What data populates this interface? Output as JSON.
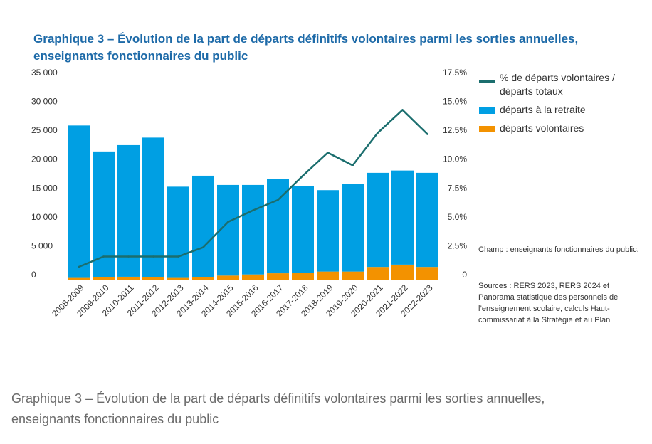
{
  "title_lines": [
    "Graphique 3 – Évolution de la part de départs définitifs  volontaires parmi les sorties annuelles,",
    "enseignants fonctionnaires du public"
  ],
  "caption_lines": [
    "Graphique 3 – Évolution de la part de départs définitifs volontaires parmi les sorties annuelles,",
    "enseignants fonctionnaires du public"
  ],
  "legend": {
    "line_label": "% de départs volontaires / départs totaux",
    "retraite_label": "départs à la retraite",
    "volontaires_label": "départs volontaires"
  },
  "notes": {
    "champ": "Champ : enseignants fonctionnaires du public.",
    "sources": "Sources : RERS 2023, RERS 2024 et Panorama statistique des personnels de l’enseignement scolaire, calculs Haut-commissariat à la Stratégie et au Plan"
  },
  "colors": {
    "title": "#1d6aa8",
    "retraite": "#009fe3",
    "volontaires": "#f39200",
    "line": "#1b6e6e",
    "axis": "#333333"
  },
  "chart_data": {
    "type": "bar",
    "stacked": true,
    "categories": [
      "2008-2009",
      "2009-2010",
      "2010-2011",
      "2011-2012",
      "2012-2013",
      "2013-2014",
      "2014-2015",
      "2015-2016",
      "2016-2017",
      "2017-2018",
      "2018-2019",
      "2019-2020",
      "2020-2021",
      "2021-2022",
      "2022-2023"
    ],
    "series": [
      {
        "name": "départs volontaires",
        "axis": "left",
        "values": [
          300,
          400,
          500,
          400,
          300,
          400,
          700,
          900,
          1100,
          1200,
          1400,
          1400,
          2200,
          2600,
          2200
        ]
      },
      {
        "name": "départs à la retraite",
        "axis": "left",
        "values": [
          26400,
          21800,
          22800,
          24200,
          15800,
          17600,
          15700,
          15500,
          16300,
          15000,
          14100,
          15200,
          16300,
          16300,
          16300
        ]
      },
      {
        "name": "% de départs volontaires / départs totaux",
        "type": "line",
        "axis": "right",
        "values": [
          1.1,
          2.0,
          2.0,
          2.0,
          2.0,
          2.8,
          5.0,
          6.0,
          6.9,
          9.0,
          11.0,
          9.9,
          12.7,
          14.7,
          12.6
        ]
      }
    ],
    "y_left": {
      "ylim": [
        0,
        35000
      ],
      "ticks": [
        "0",
        "5 000",
        "10 000",
        "15 000",
        "20 000",
        "25 000",
        "30 000",
        "35 000"
      ]
    },
    "y_right": {
      "ylim": [
        0,
        17.5
      ],
      "ticks": [
        "0",
        "2.5%",
        "5.0%",
        "7.5%",
        "10.0%",
        "12.5%",
        "15.0%",
        "17.5%"
      ]
    },
    "grid": false,
    "legend_position": "right"
  }
}
